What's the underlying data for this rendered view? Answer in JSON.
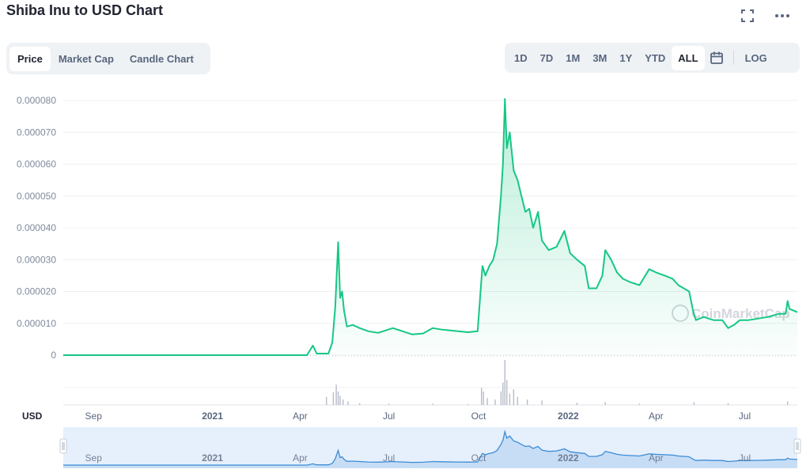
{
  "title": "Shiba Inu to USD Chart",
  "icons": {
    "fullscreen": "fullscreen-icon",
    "more": "more-icon",
    "calendar": "calendar-icon"
  },
  "tabs": [
    {
      "label": "Price",
      "active": true
    },
    {
      "label": "Market Cap",
      "active": false
    },
    {
      "label": "Candle Chart",
      "active": false
    }
  ],
  "ranges": [
    {
      "label": "1D"
    },
    {
      "label": "7D"
    },
    {
      "label": "1M"
    },
    {
      "label": "3M"
    },
    {
      "label": "1Y"
    },
    {
      "label": "YTD"
    },
    {
      "label": "ALL",
      "active": true
    }
  ],
  "log_label": "LOG",
  "currency_label": "USD",
  "watermark": "CoinMarketCap",
  "colors": {
    "line": "#16c784",
    "area": "#16c784",
    "volume": "#b8bcc8",
    "navigator": "#3b8dd6",
    "navigator_bg": "#e6effc"
  },
  "chart_data": {
    "type": "line",
    "series": [
      {
        "points": [
          [
            "2020-08-01",
            0.0
          ],
          [
            "2020-11-01",
            0.0
          ],
          [
            "2021-01-01",
            0.0
          ],
          [
            "2021-03-01",
            0.0
          ],
          [
            "2021-04-08",
            0.0
          ],
          [
            "2021-04-14",
            3e-06
          ],
          [
            "2021-04-18",
            5e-07
          ],
          [
            "2021-04-30",
            5e-07
          ],
          [
            "2021-05-04",
            4e-06
          ],
          [
            "2021-05-07",
            1.5e-05
          ],
          [
            "2021-05-10",
            3.55e-05
          ],
          [
            "2021-05-12",
            1.8e-05
          ],
          [
            "2021-05-14",
            2e-05
          ],
          [
            "2021-05-16",
            1.4e-05
          ],
          [
            "2021-05-19",
            9e-06
          ],
          [
            "2021-05-25",
            9.5e-06
          ],
          [
            "2021-06-01",
            8.5e-06
          ],
          [
            "2021-06-10",
            7.5e-06
          ],
          [
            "2021-06-20",
            7e-06
          ],
          [
            "2021-07-05",
            8.5e-06
          ],
          [
            "2021-07-15",
            7.5e-06
          ],
          [
            "2021-07-25",
            6.5e-06
          ],
          [
            "2021-08-05",
            6.8e-06
          ],
          [
            "2021-08-15",
            8.5e-06
          ],
          [
            "2021-08-25",
            8e-06
          ],
          [
            "2021-09-10",
            7.5e-06
          ],
          [
            "2021-09-20",
            7.2e-06
          ],
          [
            "2021-09-30",
            7.5e-06
          ],
          [
            "2021-10-03",
            2e-05
          ],
          [
            "2021-10-05",
            2.8e-05
          ],
          [
            "2021-10-08",
            2.5e-05
          ],
          [
            "2021-10-12",
            2.8e-05
          ],
          [
            "2021-10-16",
            3e-05
          ],
          [
            "2021-10-20",
            3.5e-05
          ],
          [
            "2021-10-24",
            5e-05
          ],
          [
            "2021-10-26",
            6e-05
          ],
          [
            "2021-10-28",
            8.05e-05
          ],
          [
            "2021-10-30",
            6.5e-05
          ],
          [
            "2021-11-02",
            7e-05
          ],
          [
            "2021-11-06",
            5.8e-05
          ],
          [
            "2021-11-10",
            5.5e-05
          ],
          [
            "2021-11-14",
            5e-05
          ],
          [
            "2021-11-18",
            4.5e-05
          ],
          [
            "2021-11-22",
            4.6e-05
          ],
          [
            "2021-11-26",
            4e-05
          ],
          [
            "2021-12-01",
            4.5e-05
          ],
          [
            "2021-12-05",
            3.6e-05
          ],
          [
            "2021-12-12",
            3.3e-05
          ],
          [
            "2021-12-20",
            3.4e-05
          ],
          [
            "2021-12-28",
            3.9e-05
          ],
          [
            "2022-01-03",
            3.2e-05
          ],
          [
            "2022-01-10",
            3e-05
          ],
          [
            "2022-01-18",
            2.8e-05
          ],
          [
            "2022-01-22",
            2.1e-05
          ],
          [
            "2022-01-30",
            2.1e-05
          ],
          [
            "2022-02-05",
            2.5e-05
          ],
          [
            "2022-02-08",
            3.3e-05
          ],
          [
            "2022-02-14",
            3e-05
          ],
          [
            "2022-02-20",
            2.6e-05
          ],
          [
            "2022-02-26",
            2.4e-05
          ],
          [
            "2022-03-05",
            2.3e-05
          ],
          [
            "2022-03-15",
            2.2e-05
          ],
          [
            "2022-03-25",
            2.7e-05
          ],
          [
            "2022-04-01",
            2.6e-05
          ],
          [
            "2022-04-10",
            2.5e-05
          ],
          [
            "2022-04-18",
            2.4e-05
          ],
          [
            "2022-04-24",
            2.2e-05
          ],
          [
            "2022-05-05",
            2e-05
          ],
          [
            "2022-05-09",
            1.4e-05
          ],
          [
            "2022-05-12",
            1.1e-05
          ],
          [
            "2022-05-20",
            1.2e-05
          ],
          [
            "2022-05-30",
            1.1e-05
          ],
          [
            "2022-06-08",
            1.1e-05
          ],
          [
            "2022-06-14",
            8.5e-06
          ],
          [
            "2022-06-20",
            9.5e-06
          ],
          [
            "2022-06-26",
            1.1e-05
          ],
          [
            "2022-07-05",
            1.1e-05
          ],
          [
            "2022-07-15",
            1.15e-05
          ],
          [
            "2022-07-25",
            1.2e-05
          ],
          [
            "2022-08-05",
            1.3e-05
          ],
          [
            "2022-08-12",
            1.3e-05
          ],
          [
            "2022-08-14",
            1.7e-05
          ],
          [
            "2022-08-16",
            1.45e-05
          ],
          [
            "2022-08-20",
            1.4e-05
          ],
          [
            "2022-08-24",
            1.35e-05
          ]
        ]
      }
    ],
    "y_ticks": [
      {
        "value": 0,
        "label": "0"
      },
      {
        "value": 1e-05,
        "label": "0.000010"
      },
      {
        "value": 2e-05,
        "label": "0.000020"
      },
      {
        "value": 3e-05,
        "label": "0.000030"
      },
      {
        "value": 4e-05,
        "label": "0.000040"
      },
      {
        "value": 5e-05,
        "label": "0.000050"
      },
      {
        "value": 6e-05,
        "label": "0.000060"
      },
      {
        "value": 7e-05,
        "label": "0.000070"
      },
      {
        "value": 8e-05,
        "label": "0.000080"
      }
    ],
    "ylim": [
      0,
      8e-05
    ],
    "xlim": [
      "2020-08-01",
      "2022-08-24"
    ],
    "x_ticks": [
      {
        "date": "2020-09-01",
        "label": "Sep",
        "bold": false
      },
      {
        "date": "2021-01-01",
        "label": "2021",
        "bold": true
      },
      {
        "date": "2021-04-01",
        "label": "Apr",
        "bold": false
      },
      {
        "date": "2021-07-01",
        "label": "Jul",
        "bold": false
      },
      {
        "date": "2021-10-01",
        "label": "Oct",
        "bold": false
      },
      {
        "date": "2022-01-01",
        "label": "2022",
        "bold": true
      },
      {
        "date": "2022-04-01",
        "label": "Apr",
        "bold": false
      },
      {
        "date": "2022-07-01",
        "label": "Jul",
        "bold": false
      }
    ],
    "volume": [
      [
        "2021-04-28",
        0.18
      ],
      [
        "2021-05-05",
        0.28
      ],
      [
        "2021-05-08",
        0.45
      ],
      [
        "2021-05-10",
        0.3
      ],
      [
        "2021-05-12",
        0.2
      ],
      [
        "2021-05-15",
        0.12
      ],
      [
        "2021-05-20",
        0.08
      ],
      [
        "2021-06-01",
        0.04
      ],
      [
        "2021-07-01",
        0.03
      ],
      [
        "2021-08-15",
        0.03
      ],
      [
        "2021-09-20",
        0.02
      ],
      [
        "2021-10-04",
        0.38
      ],
      [
        "2021-10-06",
        0.3
      ],
      [
        "2021-10-10",
        0.15
      ],
      [
        "2021-10-18",
        0.12
      ],
      [
        "2021-10-24",
        0.3
      ],
      [
        "2021-10-26",
        0.5
      ],
      [
        "2021-10-28",
        1.0
      ],
      [
        "2021-10-30",
        0.55
      ],
      [
        "2021-11-02",
        0.25
      ],
      [
        "2021-11-06",
        0.35
      ],
      [
        "2021-11-10",
        0.18
      ],
      [
        "2021-11-20",
        0.12
      ],
      [
        "2021-12-05",
        0.1
      ],
      [
        "2022-01-10",
        0.05
      ],
      [
        "2022-02-08",
        0.06
      ],
      [
        "2022-03-15",
        0.03
      ],
      [
        "2022-05-10",
        0.06
      ],
      [
        "2022-06-14",
        0.04
      ],
      [
        "2022-08-14",
        0.08
      ]
    ]
  }
}
